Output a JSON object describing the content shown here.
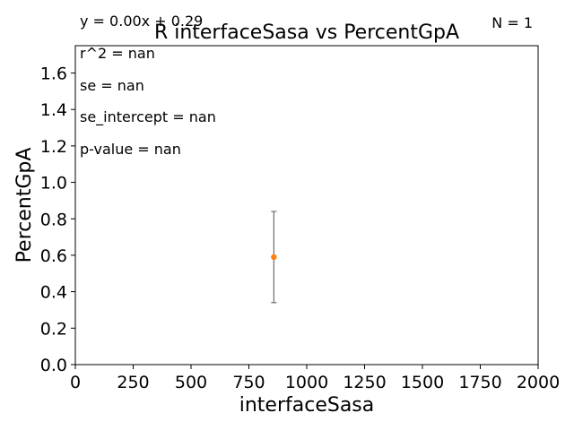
{
  "chart_data": {
    "type": "scatter",
    "title": "R interfaceSasa vs PercentGpA",
    "xlabel": "interfaceSasa",
    "ylabel": "PercentGpA",
    "xlim": [
      0,
      2000
    ],
    "ylim": [
      0,
      1.75
    ],
    "xticks": [
      0,
      250,
      500,
      750,
      1000,
      1250,
      1500,
      1750,
      2000
    ],
    "yticks": [
      0.0,
      0.2,
      0.4,
      0.6,
      0.8,
      1.0,
      1.2,
      1.4,
      1.6
    ],
    "xtick_labels": [
      "0",
      "250",
      "500",
      "750",
      "1000",
      "1250",
      "1500",
      "1750",
      "2000"
    ],
    "ytick_labels": [
      "0.0",
      "0.2",
      "0.4",
      "0.6",
      "0.8",
      "1.0",
      "1.2",
      "1.4",
      "1.6"
    ],
    "grid": false,
    "points": [
      {
        "x": 858,
        "y": 0.59,
        "yerr_low": 0.34,
        "yerr_high": 0.84
      }
    ],
    "point_color": "#ff7f0e",
    "errorbar_color": "#6e6e6e",
    "annotations": {
      "fit": "y = 0.00x + 0.29",
      "n": "N = 1",
      "r2": "r^2 = nan",
      "se": "se = nan",
      "se_intercept": "se_intercept = nan",
      "p_value": "p-value = nan"
    }
  }
}
